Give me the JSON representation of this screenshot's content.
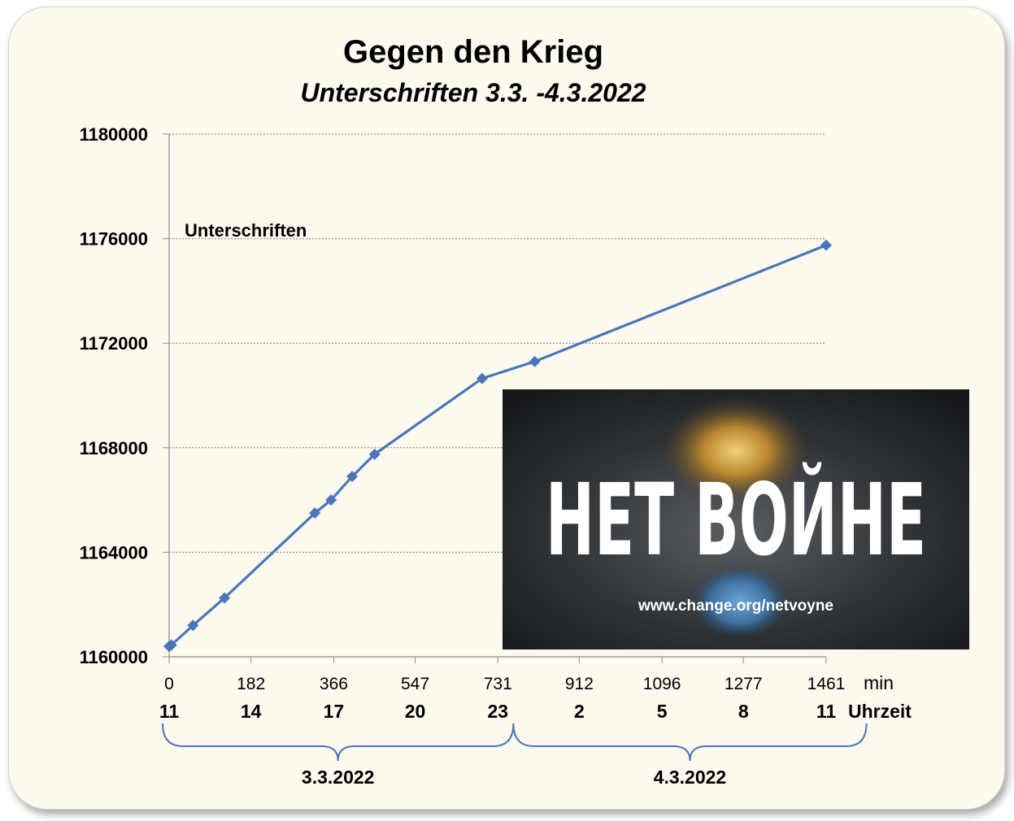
{
  "chart_data": {
    "type": "line",
    "title": "Gegen den Krieg",
    "subtitle": "Unterschriften 3.3. -4.3.2022",
    "series_label": "Unterschriften",
    "xlabel": "min",
    "hour_axis_label": "Uhrzeit",
    "xlim": [
      0,
      1461
    ],
    "ylim": [
      1160000,
      1180000
    ],
    "y_ticks": [
      "1160000",
      "1164000",
      "1168000",
      "1172000",
      "1176000",
      "1180000"
    ],
    "y_tick_values": [
      1160000,
      1164000,
      1168000,
      1172000,
      1176000,
      1180000
    ],
    "x_ticks": [
      "0",
      "182",
      "366",
      "547",
      "731",
      "912",
      "1096",
      "1277",
      "1461"
    ],
    "x_tick_values": [
      0,
      182,
      366,
      547,
      731,
      912,
      1096,
      1277,
      1461
    ],
    "hour_labels": [
      "11",
      "14",
      "17",
      "20",
      "23",
      "2",
      "5",
      "8",
      "11"
    ],
    "hour_label_positions": [
      0,
      182,
      366,
      547,
      731,
      912,
      1096,
      1277,
      1461
    ],
    "date_groups": [
      {
        "label": "3.3.2022",
        "from": 0,
        "to": 780
      },
      {
        "label": "4.3.2022",
        "from": 780,
        "to": 1565
      }
    ],
    "grid": true,
    "color": "#4a76b9",
    "x": [
      0,
      5,
      53,
      123,
      324,
      360,
      407,
      457,
      696,
      813,
      1461
    ],
    "y": [
      1160400,
      1160450,
      1161200,
      1162250,
      1165500,
      1166000,
      1166900,
      1167750,
      1170650,
      1171300,
      1175750
    ]
  },
  "banner": {
    "headline": "НЕТ ВОЙНЕ",
    "url": "www.change.org/netvoyne"
  }
}
